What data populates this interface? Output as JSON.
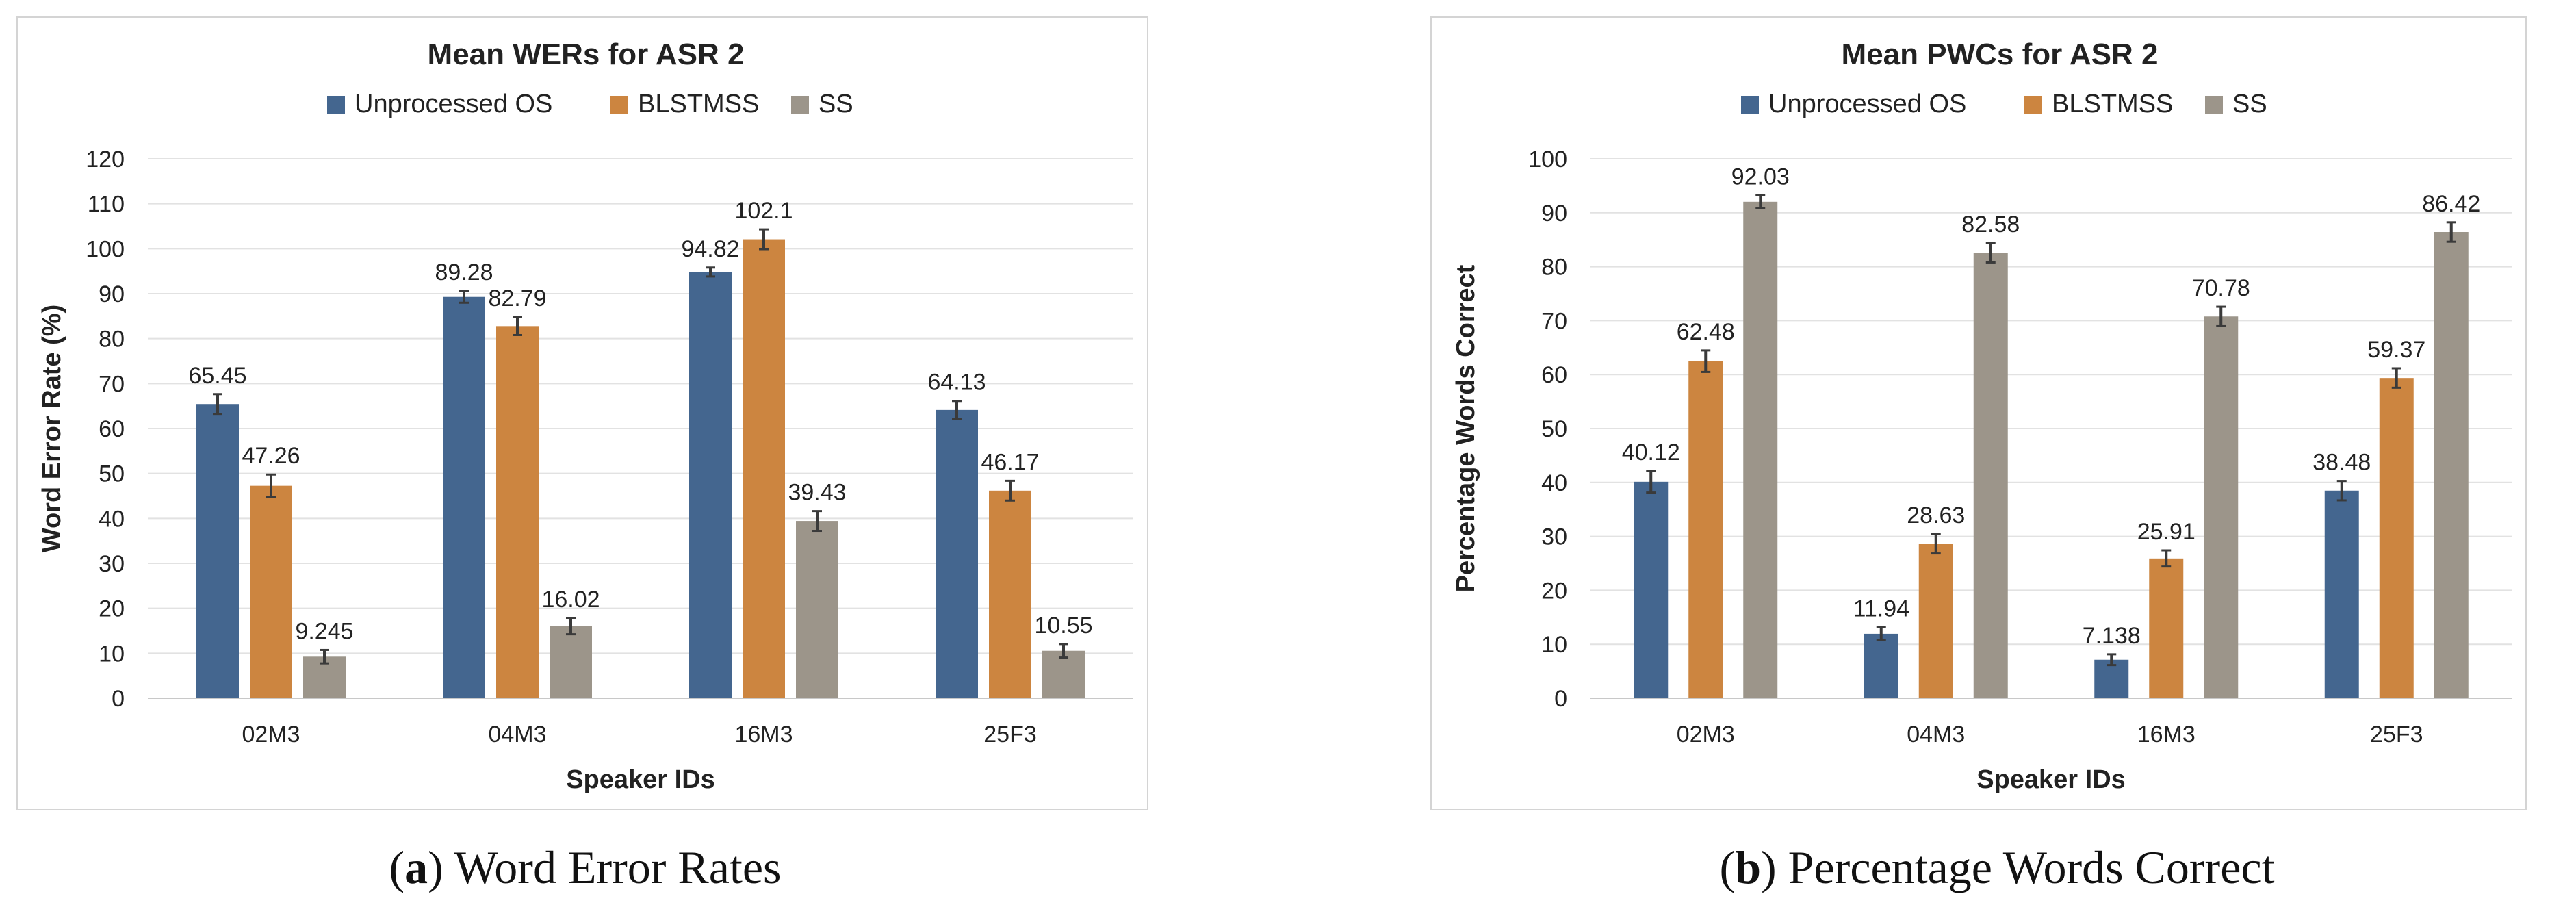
{
  "chart_data": [
    {
      "type": "bar",
      "title": "Mean WERs for ASR 2",
      "xlabel": "Speaker IDs",
      "ylabel": "Word Error Rate (%)",
      "ylim": [
        0,
        120
      ],
      "yticks": [
        0,
        10,
        20,
        30,
        40,
        50,
        60,
        70,
        80,
        90,
        100,
        110,
        120
      ],
      "categories": [
        "02M3",
        "04M3",
        "16M3",
        "25F3"
      ],
      "legend_position": "top",
      "grid": true,
      "series": [
        {
          "name": "Unprocessed OS",
          "color": "#44668f",
          "values": [
            65.45,
            89.28,
            94.82,
            64.13
          ],
          "labels": [
            "65.45",
            "89.28",
            "94.82",
            "64.13"
          ],
          "errors": [
            2.2,
            1.3,
            1.0,
            2.0
          ]
        },
        {
          "name": "BLSTMSS",
          "color": "#cc8540",
          "values": [
            47.26,
            82.79,
            102.1,
            46.17
          ],
          "labels": [
            "47.26",
            "82.79",
            "102.1",
            "46.17"
          ],
          "errors": [
            2.5,
            2.0,
            2.2,
            2.2
          ]
        },
        {
          "name": "SS",
          "color": "#9c958a",
          "values": [
            9.245,
            16.02,
            39.43,
            10.55
          ],
          "labels": [
            "9.245",
            "16.02",
            "39.43",
            "10.55"
          ],
          "errors": [
            1.5,
            1.8,
            2.2,
            1.5
          ]
        }
      ]
    },
    {
      "type": "bar",
      "title": "Mean PWCs for ASR 2",
      "xlabel": "Speaker IDs",
      "ylabel": "Percentage Words Correct",
      "ylim": [
        0,
        100
      ],
      "yticks": [
        0,
        10,
        20,
        30,
        40,
        50,
        60,
        70,
        80,
        90,
        100
      ],
      "categories": [
        "02M3",
        "04M3",
        "16M3",
        "25F3"
      ],
      "legend_position": "top",
      "grid": true,
      "series": [
        {
          "name": "Unprocessed OS",
          "color": "#44668f",
          "values": [
            40.12,
            11.94,
            7.138,
            38.48
          ],
          "labels": [
            "40.12",
            "11.94",
            "7.138",
            "38.48"
          ],
          "errors": [
            2.0,
            1.2,
            1.0,
            1.8
          ]
        },
        {
          "name": "BLSTMSS",
          "color": "#cc8540",
          "values": [
            62.48,
            28.63,
            25.91,
            59.37
          ],
          "labels": [
            "62.48",
            "28.63",
            "25.91",
            "59.37"
          ],
          "errors": [
            2.0,
            1.8,
            1.5,
            1.8
          ]
        },
        {
          "name": "SS",
          "color": "#9c958a",
          "values": [
            92.03,
            82.58,
            70.78,
            86.42
          ],
          "labels": [
            "92.03",
            "82.58",
            "70.78",
            "86.42"
          ],
          "errors": [
            1.2,
            1.8,
            1.8,
            1.8
          ]
        }
      ]
    }
  ],
  "captions": [
    {
      "tag": "(a)",
      "text": "Word Error Rates"
    },
    {
      "tag": "(b)",
      "text": "Percentage Words Correct"
    }
  ]
}
